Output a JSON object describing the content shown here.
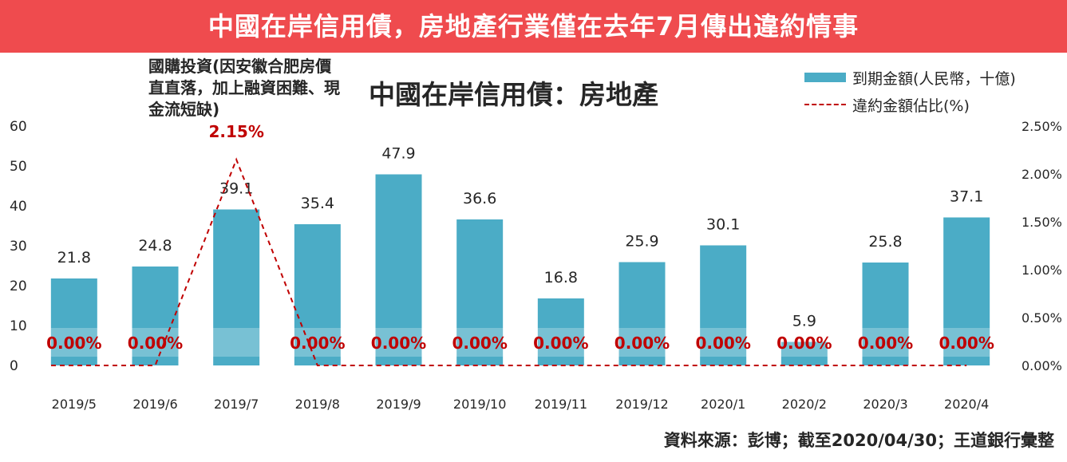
{
  "banner": {
    "title": "中國在岸信用債，房地產行業僅在去年7月傳出違約情事"
  },
  "annotation": {
    "text": "國購投資(因安徽合肥房價直直落，加上融資困難、現金流短缺)"
  },
  "source": {
    "text": "資料來源：彭博；截至2020/04/30；王道銀行彙整"
  },
  "colors": {
    "bar": "#4bacc6",
    "line": "#c00000",
    "banner": "#ef4b4e"
  },
  "chart_data": {
    "type": "bar",
    "title": "中國在岸信用債：房地產",
    "categories": [
      "2019/5",
      "2019/6",
      "2019/7",
      "2019/8",
      "2019/9",
      "2019/10",
      "2019/11",
      "2019/12",
      "2020/1",
      "2020/2",
      "2020/3",
      "2020/4"
    ],
    "series": [
      {
        "name": "到期金額(人民幣，十億)",
        "kind": "bar",
        "axis": "left",
        "values": [
          21.8,
          24.8,
          39.1,
          35.4,
          47.9,
          36.6,
          16.8,
          25.9,
          30.1,
          5.9,
          25.8,
          37.1
        ],
        "labels": [
          "21.8",
          "24.8",
          "39.1",
          "35.4",
          "47.9",
          "36.6",
          "16.8",
          "25.9",
          "30.1",
          "5.9",
          "25.8",
          "37.1"
        ]
      },
      {
        "name": "違約金額佔比(%)",
        "kind": "line",
        "style": "dashed",
        "axis": "right",
        "values": [
          0.0,
          0.0,
          2.15,
          0.0,
          0.0,
          0.0,
          0.0,
          0.0,
          0.0,
          0.0,
          0.0,
          0.0
        ],
        "labels": [
          "0.00%",
          "0.00%",
          "2.15%",
          "0.00%",
          "0.00%",
          "0.00%",
          "0.00%",
          "0.00%",
          "0.00%",
          "0.00%",
          "0.00%",
          "0.00%"
        ]
      }
    ],
    "ylim": [
      0,
      60
    ],
    "yticks": [
      "0",
      "10",
      "20",
      "30",
      "40",
      "50",
      "60"
    ],
    "y2lim": [
      0,
      2.5
    ],
    "y2ticks": [
      "0.00%",
      "0.50%",
      "1.00%",
      "1.50%",
      "2.00%",
      "2.50%"
    ],
    "grid": false,
    "legend": "top-right"
  }
}
